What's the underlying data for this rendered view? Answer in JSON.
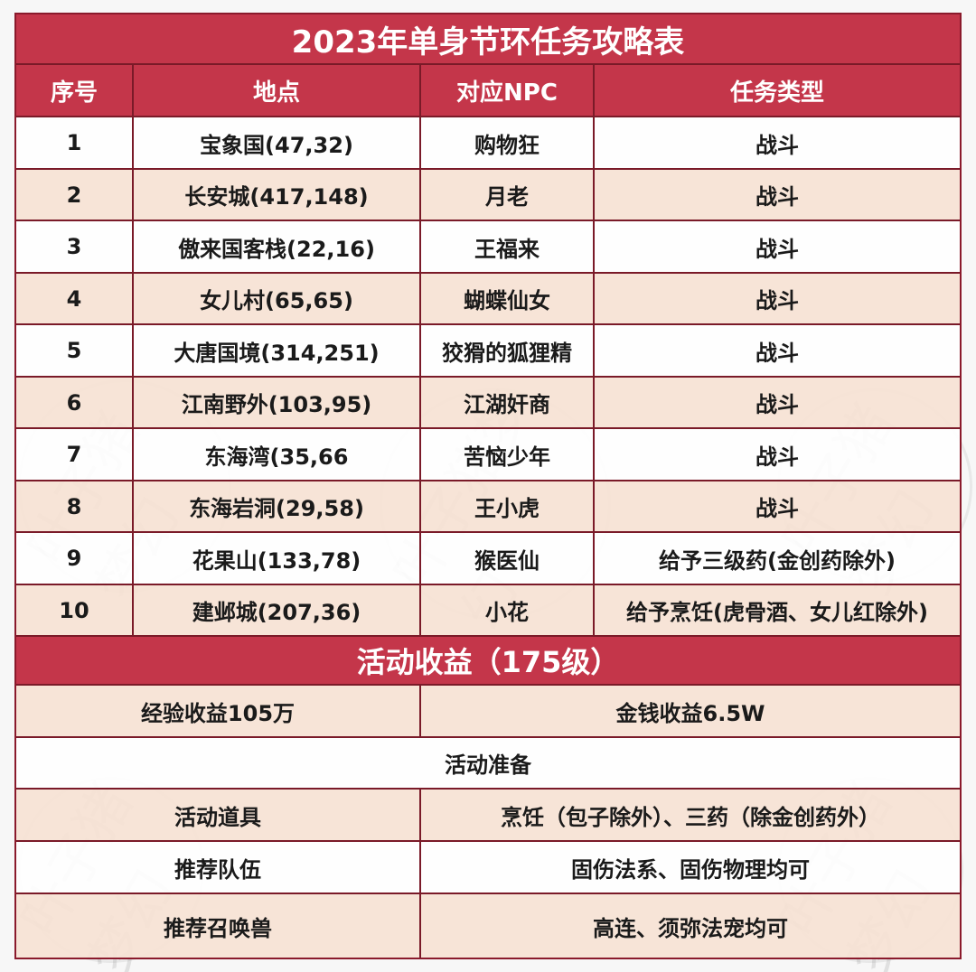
{
  "title": "2023年单身节环任务攻略表",
  "headers": [
    "序号",
    "地点",
    "对应NPC",
    "任务类型"
  ],
  "rows": [
    {
      "no": "1",
      "place": "宝象国(47,32)",
      "npc": "购物狂",
      "type": "战斗"
    },
    {
      "no": "2",
      "place": "长安城(417,148)",
      "npc": "月老",
      "type": "战斗"
    },
    {
      "no": "3",
      "place": "傲来国客栈(22,16)",
      "npc": "王福来",
      "type": "战斗"
    },
    {
      "no": "4",
      "place": "女儿村(65,65)",
      "npc": "蝴蝶仙女",
      "type": "战斗"
    },
    {
      "no": "5",
      "place": "大唐国境(314,251)",
      "npc": "狡猾的狐狸精",
      "type": "战斗"
    },
    {
      "no": "6",
      "place": "江南野外(103,95)",
      "npc": "江湖奸商",
      "type": "战斗"
    },
    {
      "no": "7",
      "place": "东海湾(35,66",
      "npc": "苦恼少年",
      "type": "战斗"
    },
    {
      "no": "8",
      "place": "东海岩洞(29,58)",
      "npc": "王小虎",
      "type": "战斗"
    },
    {
      "no": "9",
      "place": "花果山(133,78)",
      "npc": "猴医仙",
      "type": "给予三级药(金创药除外)"
    },
    {
      "no": "10",
      "place": "建邺城(207,36)",
      "npc": "小花",
      "type": "给予烹饪(虎骨酒、女儿红除外)"
    }
  ],
  "income": {
    "title": "活动收益（175级）",
    "exp": "经验收益105万",
    "money": "金钱收益6.5W"
  },
  "prep": {
    "title": "活动准备",
    "items": [
      {
        "label": "活动道具",
        "value": "烹饪（包子除外）、三药（除金创药外）"
      },
      {
        "label": "推荐队伍",
        "value": "固伤法系、固伤物理均可"
      },
      {
        "label": "推荐召唤兽",
        "value": "高连、须弥法宠均可"
      }
    ]
  },
  "watermark": [
    "叶子猪梦幻"
  ]
}
